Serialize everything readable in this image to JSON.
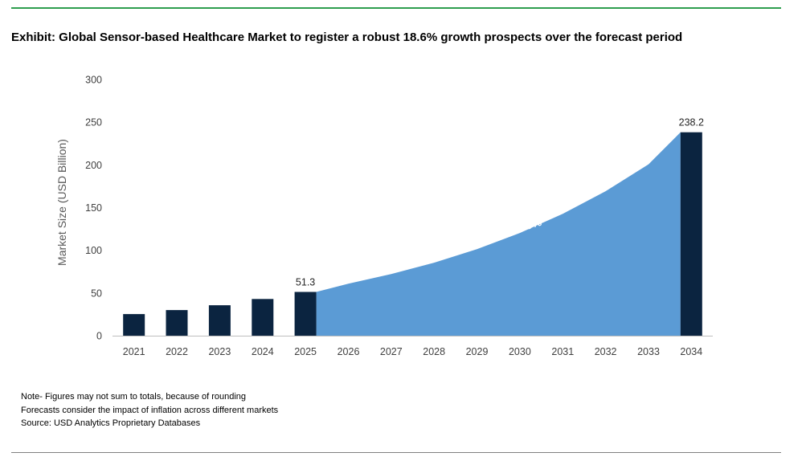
{
  "title": "Exhibit: Global Sensor-based Healthcare Market to register a robust 18.6% growth prospects over the forecast period",
  "chart_data": {
    "type": "bar",
    "categories": [
      "2021",
      "2022",
      "2023",
      "2024",
      "2025",
      "2026",
      "2027",
      "2028",
      "2029",
      "2030",
      "2031",
      "2032",
      "2033",
      "2034"
    ],
    "values": [
      25.3,
      30.0,
      35.6,
      43.0,
      51.3,
      60.8,
      72.1,
      85.5,
      101.4,
      120.3,
      142.7,
      169.2,
      200.7,
      238.2
    ],
    "bar_categories": [
      "2021",
      "2022",
      "2023",
      "2024",
      "2025",
      "2034"
    ],
    "data_labels": [
      {
        "category": "2025",
        "label": "51.3"
      },
      {
        "category": "2034",
        "label": "238.2"
      }
    ],
    "area_range": [
      "2025",
      "2034"
    ],
    "annotation": "CAGR =>18.6%",
    "ylabel": "Market Size (USD Billion)",
    "xlabel": "",
    "ylim": [
      0,
      300
    ],
    "yticks": [
      0,
      50,
      100,
      150,
      200,
      250,
      300
    ],
    "grid": false,
    "colors": {
      "bar": "#0b2440",
      "area": "#5b9bd5",
      "axis": "#bfbfbf",
      "annotation": "#ffffff"
    }
  },
  "notes": [
    "Note- Figures may not sum to totals, because of rounding",
    "Forecasts consider the impact of inflation across different markets",
    "Source: USD Analytics Proprietary Databases"
  ]
}
